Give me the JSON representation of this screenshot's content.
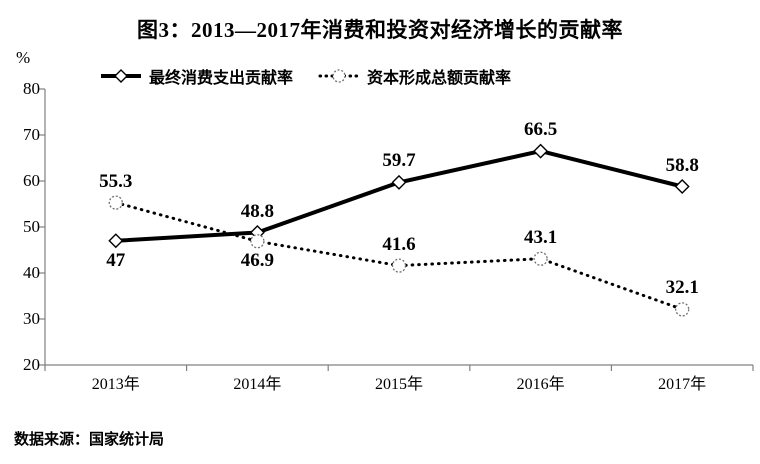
{
  "title": "图3：2013—2017年消费和投资对经济增长的贡献率",
  "footer": "数据来源：国家统计局",
  "chart_data": {
    "type": "line",
    "categories": [
      "2013年",
      "2014年",
      "2015年",
      "2016年",
      "2017年"
    ],
    "series": [
      {
        "name": "最终消费支出贡献率",
        "line_style": "solid",
        "marker": "diamond",
        "values": [
          47,
          48.8,
          59.7,
          66.5,
          58.8
        ],
        "labels": [
          "47",
          "48.8",
          "59.7",
          "66.5",
          "58.8"
        ],
        "label_position": [
          "below",
          "above",
          "above",
          "above",
          "above"
        ]
      },
      {
        "name": "资本形成总额贡献率",
        "line_style": "dotted",
        "marker": "circle",
        "values": [
          55.3,
          46.9,
          41.6,
          43.1,
          32.1
        ],
        "labels": [
          "55.3",
          "46.9",
          "41.6",
          "43.1",
          "32.1"
        ],
        "label_position": [
          "above",
          "below",
          "above",
          "above",
          "above"
        ]
      }
    ],
    "ylabel": "%",
    "xlabel": "",
    "ylim": [
      20,
      80
    ],
    "yticks": [
      20,
      30,
      40,
      50,
      60,
      70,
      80
    ],
    "grid": false,
    "legend_position": "top",
    "axis_color": "#808080",
    "line_color": "#000000",
    "marker_circle_color": "#707070",
    "background_color": "#ffffff"
  }
}
